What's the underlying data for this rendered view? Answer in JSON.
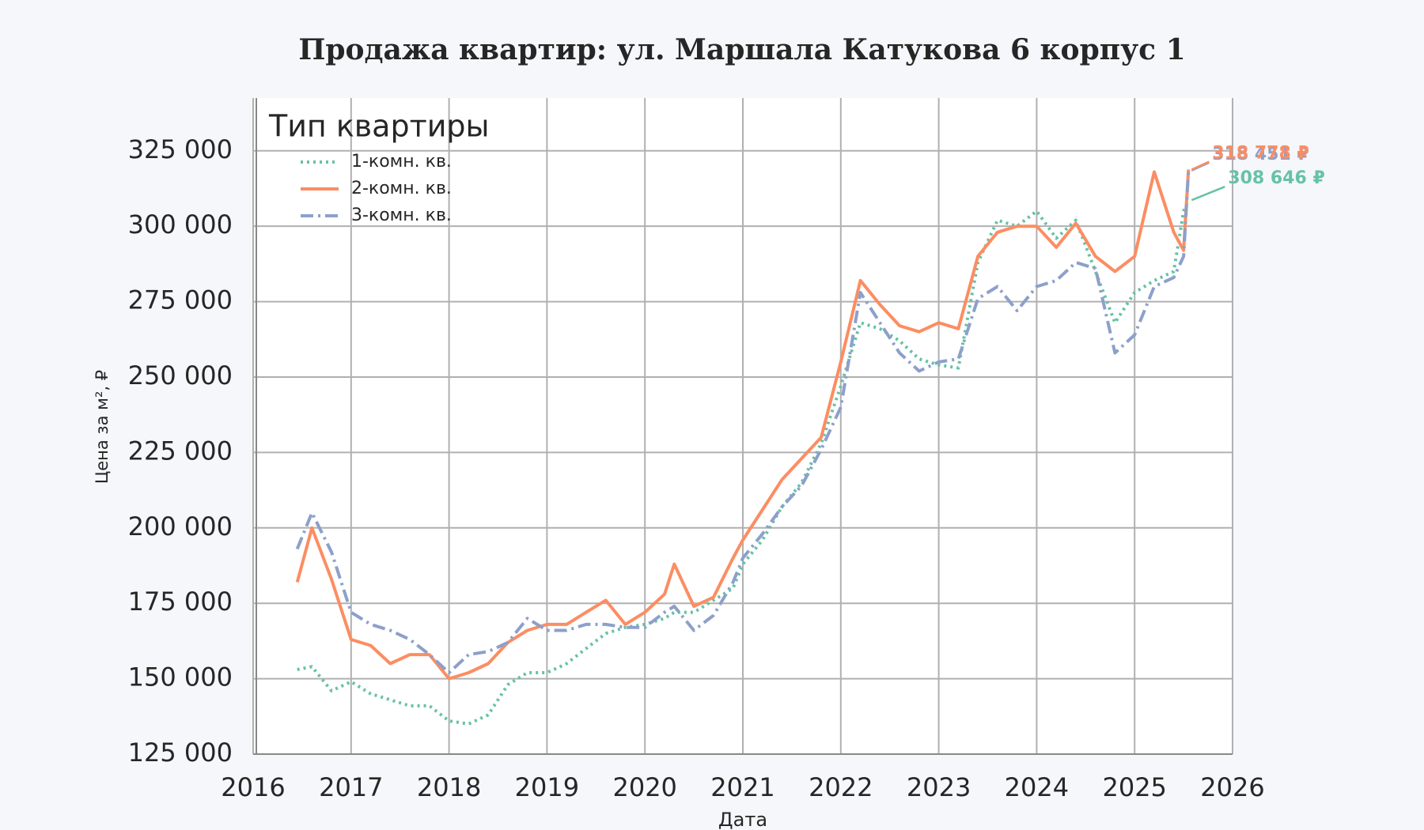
{
  "chart_data": {
    "type": "line",
    "title": "Продажа квартир: ул. Маршала Катукова 6 корпус 1",
    "x_label": "Дата",
    "y_label": "Цена за м², ₽",
    "legend_title": "Тип квартиры",
    "legend": "upper left",
    "grid": true,
    "xlim": [
      2016,
      2026
    ],
    "xticks": [
      2016,
      2017,
      2018,
      2019,
      2020,
      2021,
      2022,
      2023,
      2024,
      2025,
      2026
    ],
    "ylim": [
      125000,
      342500
    ],
    "yticks": [
      {
        "value": 125000,
        "label": "125 000"
      },
      {
        "value": 150000,
        "label": "150 000"
      },
      {
        "value": 175000,
        "label": "175 000"
      },
      {
        "value": 200000,
        "label": "200 000"
      },
      {
        "value": 225000,
        "label": "225 000"
      },
      {
        "value": 250000,
        "label": "250 000"
      },
      {
        "value": 275000,
        "label": "275 000"
      },
      {
        "value": 300000,
        "label": "300 000"
      },
      {
        "value": 325000,
        "label": "325 000"
      }
    ],
    "x": [
      2016.45,
      2016.6,
      2016.8,
      2017.0,
      2017.2,
      2017.4,
      2017.6,
      2017.8,
      2018.0,
      2018.2,
      2018.4,
      2018.6,
      2018.8,
      2019.0,
      2019.2,
      2019.4,
      2019.6,
      2019.8,
      2020.0,
      2020.2,
      2020.3,
      2020.5,
      2020.7,
      2020.9,
      2021.0,
      2021.2,
      2021.4,
      2021.6,
      2021.8,
      2022.0,
      2022.2,
      2022.4,
      2022.6,
      2022.8,
      2023.0,
      2023.2,
      2023.4,
      2023.6,
      2023.8,
      2024.0,
      2024.2,
      2024.4,
      2024.6,
      2024.8,
      2025.0,
      2025.2,
      2025.4,
      2025.5,
      2025.55
    ],
    "series": [
      {
        "name": "1-комн. кв.",
        "color": "#66c2a5",
        "dash": "dotted",
        "values": [
          153000,
          154000,
          146000,
          149000,
          145000,
          143000,
          141000,
          141000,
          136000,
          135000,
          138000,
          148000,
          152000,
          152000,
          155000,
          160000,
          165000,
          167000,
          168000,
          170000,
          172000,
          172000,
          176000,
          180000,
          188000,
          196000,
          207000,
          215000,
          228000,
          247000,
          268000,
          266000,
          262000,
          256000,
          254000,
          253000,
          288000,
          302000,
          300000,
          305000,
          296000,
          302000,
          285000,
          268000,
          278000,
          282000,
          285000,
          305000,
          308646
        ]
      },
      {
        "name": "2-комн. кв.",
        "color": "#fc8d62",
        "dash": "solid",
        "values": [
          182000,
          200000,
          183000,
          163000,
          161000,
          155000,
          158000,
          158000,
          150000,
          152000,
          155000,
          162000,
          166000,
          168000,
          168000,
          172000,
          176000,
          168000,
          172000,
          178000,
          188000,
          174000,
          177000,
          190000,
          196000,
          206000,
          216000,
          223000,
          230000,
          255000,
          282000,
          274000,
          267000,
          265000,
          268000,
          266000,
          290000,
          298000,
          300000,
          300000,
          293000,
          301000,
          290000,
          285000,
          290000,
          318000,
          298000,
          292000,
          318778
        ]
      },
      {
        "name": "3-комн. кв.",
        "color": "#8da0cb",
        "dash": "dashdot",
        "values": [
          193000,
          205000,
          192000,
          172000,
          168000,
          166000,
          163000,
          158000,
          152000,
          158000,
          159000,
          162000,
          170000,
          166000,
          166000,
          168000,
          168000,
          167000,
          167000,
          172000,
          174000,
          166000,
          171000,
          182000,
          190000,
          198000,
          207000,
          214000,
          226000,
          240000,
          278000,
          268000,
          258000,
          252000,
          255000,
          256000,
          276000,
          280000,
          272000,
          280000,
          282000,
          288000,
          286000,
          258000,
          264000,
          280000,
          283000,
          290000,
          318451
        ]
      }
    ],
    "annotations": [
      {
        "text": "308 646 ₽",
        "x": 2025.55,
        "y": 308646,
        "color": "#66c2a5"
      },
      {
        "text": "318 451 ₽",
        "x": 2025.55,
        "y": 318451,
        "color": "#8da0cb"
      },
      {
        "text": "318 778 ₽",
        "x": 2025.55,
        "y": 318778,
        "color": "#fc8d62"
      }
    ]
  }
}
